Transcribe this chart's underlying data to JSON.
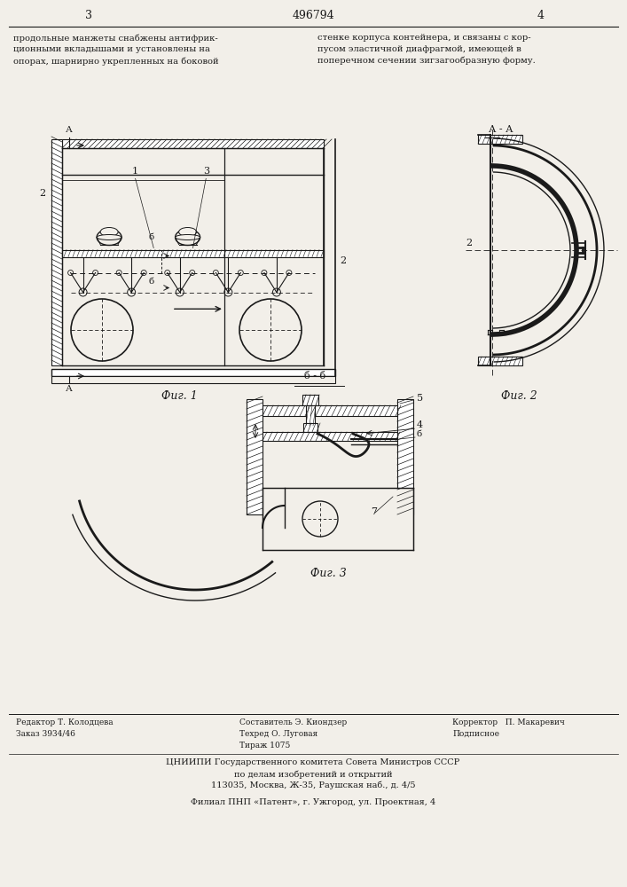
{
  "page_number_left": "3",
  "page_number_center": "496794",
  "page_number_right": "4",
  "text_left": "продольные манжеты снабжены антифрик-\nционными вкладышами и установлены на\nопорах, шарнирно укрепленных на боковой",
  "text_right": "стенке корпуса контейнера, и связаны с кор-\nпусом эластичной диафрагмой, имеющей в\nпоперечном сечении зигзагообразную форму.",
  "fig1_caption": "Фиг. 1",
  "fig2_caption": "Фиг. 2",
  "fig3_caption": "Фиг. 3",
  "section_aa": "А - А",
  "section_bb": "б - б",
  "footer_line3": "ЦНИИПИ Государственного комитета Совета Министров СССР",
  "footer_line4": "по делам изобретений и открытий",
  "footer_line5": "113035, Москва, Ж-35, Раушская наб., д. 4/5",
  "footer_line6": "Филиал ПНП «Патент», г. Ужгород, ул. Проектная, 4",
  "bg_color": "#f2efe9",
  "line_color": "#1a1a1a"
}
